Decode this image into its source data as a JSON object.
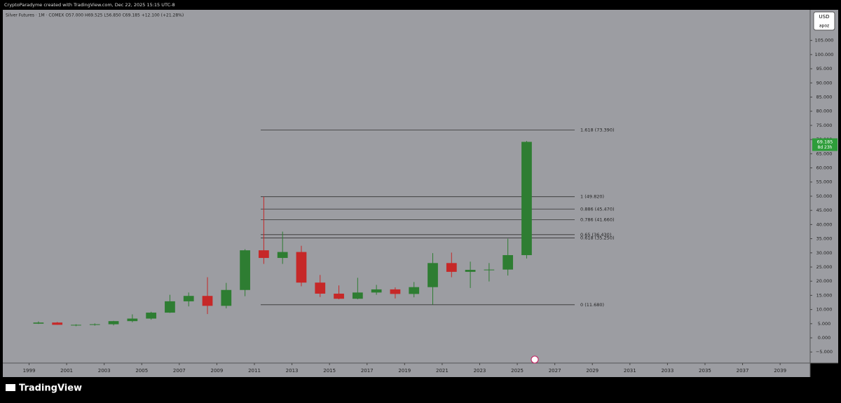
{
  "header": {
    "credit": "CryptoParadyme created with TradingView.com, Dec 22, 2025 15:15 UTC-8",
    "brand": "TradingView",
    "currency": "USD",
    "scale_mode": "apoz"
  },
  "chart_data": {
    "type": "candlestick",
    "title": "Silver Futures · 1M · COMEX  O57.000  H69.525  L56.850  C69.185  +12.100 (+21.28%)",
    "x": [
      1999,
      2000,
      2001,
      2002,
      2003,
      2004,
      2005,
      2006,
      2007,
      2008,
      2009,
      2010,
      2011,
      2012,
      2013,
      2014,
      2015,
      2016,
      2017,
      2018,
      2019,
      2020,
      2021,
      2022,
      2023,
      2024,
      2025
    ],
    "open": [
      5.0,
      5.4,
      4.6,
      4.6,
      4.8,
      5.9,
      6.8,
      8.9,
      12.9,
      14.8,
      11.3,
      16.9,
      30.9,
      28.2,
      30.3,
      19.5,
      15.6,
      13.8,
      16.0,
      17.1,
      15.5,
      17.9,
      26.4,
      23.3,
      24.0,
      24.1,
      29.2
    ],
    "high": [
      5.8,
      5.6,
      4.8,
      5.1,
      6.0,
      8.3,
      9.2,
      15.2,
      16.0,
      21.4,
      19.4,
      31.3,
      49.8,
      37.5,
      32.5,
      22.2,
      18.5,
      21.2,
      18.7,
      17.8,
      19.7,
      29.9,
      30.1,
      26.9,
      26.4,
      35.0,
      69.5
    ],
    "low": [
      4.9,
      4.6,
      4.1,
      4.3,
      4.4,
      5.5,
      6.4,
      8.8,
      11.1,
      8.4,
      10.4,
      14.7,
      26.1,
      26.1,
      18.2,
      14.4,
      13.6,
      13.6,
      15.2,
      13.9,
      14.3,
      11.7,
      21.4,
      17.6,
      19.9,
      22.0,
      28.0
    ],
    "close": [
      5.4,
      4.6,
      4.6,
      4.8,
      5.9,
      6.8,
      8.9,
      12.9,
      14.8,
      11.3,
      16.9,
      30.9,
      28.2,
      30.3,
      19.5,
      15.6,
      13.8,
      16.0,
      17.1,
      15.5,
      17.9,
      26.4,
      23.3,
      24.0,
      24.1,
      29.2,
      69.185
    ],
    "up_color": "#2e7d32",
    "down_color": "#c62828",
    "xlim": [
      1997.6,
      2040.6
    ],
    "xticks": [
      1999,
      2001,
      2003,
      2005,
      2007,
      2009,
      2011,
      2013,
      2015,
      2017,
      2019,
      2021,
      2023,
      2025,
      2027,
      2029,
      2031,
      2033,
      2035,
      2037,
      2039
    ],
    "ylim": [
      -8.9,
      115.8
    ],
    "yticks": [
      {
        "value": -5,
        "label": "−5.000"
      },
      {
        "value": 0,
        "label": "0.000"
      },
      {
        "value": 5,
        "label": "5.000"
      },
      {
        "value": 10,
        "label": "10.000"
      },
      {
        "value": 15,
        "label": "15.000"
      },
      {
        "value": 20,
        "label": "20.000"
      },
      {
        "value": 25,
        "label": "25.000"
      },
      {
        "value": 30,
        "label": "30.000"
      },
      {
        "value": 35,
        "label": "35.000"
      },
      {
        "value": 40,
        "label": "40.000"
      },
      {
        "value": 45,
        "label": "45.000"
      },
      {
        "value": 50,
        "label": "50.000"
      },
      {
        "value": 55,
        "label": "55.000"
      },
      {
        "value": 60,
        "label": "60.000"
      },
      {
        "value": 65,
        "label": "65.000"
      },
      {
        "value": 70,
        "label": "70.000"
      },
      {
        "value": 75,
        "label": "75.000"
      },
      {
        "value": 80,
        "label": "80.000"
      },
      {
        "value": 85,
        "label": "85.000"
      },
      {
        "value": 90,
        "label": "90.000"
      },
      {
        "value": 95,
        "label": "95.000"
      },
      {
        "value": 100,
        "label": "100.000"
      },
      {
        "value": 105,
        "label": "105.000"
      }
    ],
    "fib_levels": [
      {
        "value": 73.39,
        "label": "1.618 (73.390)"
      },
      {
        "value": 49.82,
        "label": "1 (49.820)"
      },
      {
        "value": 45.47,
        "label": "0.886 (45.470)"
      },
      {
        "value": 41.66,
        "label": "0.786 (41.660)"
      },
      {
        "value": 36.43,
        "label": "0.65 (36.430)"
      },
      {
        "value": 35.25,
        "label": "0.618 (35.250)"
      },
      {
        "value": 11.68,
        "label": "0 (11.680)"
      }
    ],
    "last_price": {
      "value": 69.185,
      "label": "69.185",
      "countdown": "8d 23h"
    },
    "grid": false
  }
}
